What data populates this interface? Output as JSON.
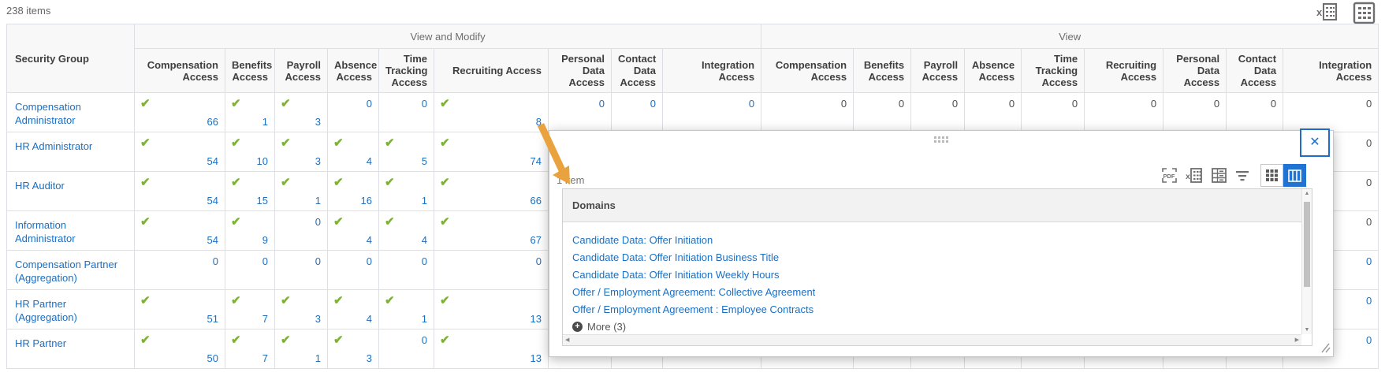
{
  "page": {
    "items_count": "238 items"
  },
  "colors": {
    "link_blue": "#1b6fc2",
    "check_green": "#7db332",
    "plain_value": "#4f4f4f",
    "arrow_orange": "#e9a23e",
    "toggle_active_blue": "#2073d3",
    "close_border_blue": "#1f6dc9"
  },
  "top_icons": [
    "export-to-excel-icon",
    "grid-view-icon"
  ],
  "table": {
    "security_group_header": "Security Group",
    "groups": [
      {
        "label": "View and Modify",
        "columns": [
          "Compensation Access",
          "Benefits Access",
          "Payroll Access",
          "Absence Access",
          "Time Tracking Access",
          "Recruiting Access",
          "Personal Data Access",
          "Contact Data Access",
          "Integration Access"
        ]
      },
      {
        "label": "View",
        "columns": [
          "Compensation Access",
          "Benefits Access",
          "Payroll Access",
          "Absence Access",
          "Time Tracking Access",
          "Recruiting Access",
          "Personal Data Access",
          "Contact Data Access",
          "Integration Access"
        ]
      }
    ],
    "rows": [
      {
        "name": "Compensation Administrator",
        "vm": [
          {
            "check": true,
            "value": "66"
          },
          {
            "check": true,
            "value": "1"
          },
          {
            "check": true,
            "value": "3"
          },
          {
            "value": "0",
            "link": true
          },
          {
            "value": "0",
            "link": true
          },
          {
            "check": true,
            "value": "8"
          },
          {
            "value": "0",
            "link": true
          },
          {
            "value": "0",
            "link": true
          },
          {
            "value": "0",
            "link": true
          }
        ],
        "view": [
          {
            "value": "0"
          },
          {
            "value": "0"
          },
          {
            "value": "0"
          },
          {
            "value": "0"
          },
          {
            "value": "0"
          },
          {
            "value": "0"
          },
          {
            "value": "0"
          },
          {
            "value": "0"
          },
          {
            "value": "0"
          }
        ]
      },
      {
        "name": "HR Administrator",
        "vm": [
          {
            "check": true,
            "value": "54"
          },
          {
            "check": true,
            "value": "10"
          },
          {
            "check": true,
            "value": "3"
          },
          {
            "check": true,
            "value": "4"
          },
          {
            "check": true,
            "value": "5"
          },
          {
            "check": true,
            "value": "74"
          },
          null,
          null,
          null
        ],
        "view": [
          null,
          null,
          null,
          null,
          null,
          null,
          null,
          null,
          {
            "value": "0"
          }
        ]
      },
      {
        "name": "HR Auditor",
        "vm": [
          {
            "check": true,
            "value": "54"
          },
          {
            "check": true,
            "value": "15"
          },
          {
            "check": true,
            "value": "1"
          },
          {
            "check": true,
            "value": "16"
          },
          {
            "check": true,
            "value": "1"
          },
          {
            "check": true,
            "value": "66"
          },
          null,
          null,
          null
        ],
        "view": [
          null,
          null,
          null,
          null,
          null,
          null,
          null,
          null,
          {
            "value": "0"
          }
        ]
      },
      {
        "name": "Information Administrator",
        "vm": [
          {
            "check": true,
            "value": "54"
          },
          {
            "check": true,
            "value": "9"
          },
          {
            "value": "0",
            "link": true
          },
          {
            "check": true,
            "value": "4"
          },
          {
            "check": true,
            "value": "4"
          },
          {
            "check": true,
            "value": "67"
          },
          null,
          null,
          null
        ],
        "view": [
          null,
          null,
          null,
          null,
          null,
          null,
          null,
          null,
          {
            "value": "0"
          }
        ]
      },
      {
        "name": "Compensation Partner (Aggregation)",
        "vm": [
          {
            "value": "0",
            "link": true
          },
          {
            "value": "0",
            "link": true
          },
          {
            "value": "0",
            "link": true
          },
          {
            "value": "0",
            "link": true
          },
          {
            "value": "0",
            "link": true
          },
          {
            "value": "0",
            "link": true
          },
          null,
          null,
          null
        ],
        "view": [
          null,
          null,
          null,
          null,
          null,
          null,
          null,
          null,
          {
            "value": "0",
            "link": true
          }
        ]
      },
      {
        "name": "HR Partner (Aggregation)",
        "vm": [
          {
            "check": true,
            "value": "51"
          },
          {
            "check": true,
            "value": "7"
          },
          {
            "check": true,
            "value": "3"
          },
          {
            "check": true,
            "value": "4"
          },
          {
            "check": true,
            "value": "1"
          },
          {
            "check": true,
            "value": "13"
          },
          null,
          null,
          null
        ],
        "view": [
          null,
          null,
          null,
          null,
          null,
          null,
          null,
          null,
          {
            "value": "0",
            "link": true
          }
        ]
      },
      {
        "name": "HR Partner",
        "vm": [
          {
            "check": true,
            "value": "50"
          },
          {
            "check": true,
            "value": "7"
          },
          {
            "check": true,
            "value": "1"
          },
          {
            "check": true,
            "value": "3"
          },
          {
            "value": "0",
            "link": true
          },
          {
            "check": true,
            "value": "13"
          },
          null,
          null,
          null
        ],
        "view": [
          null,
          null,
          null,
          null,
          null,
          null,
          null,
          null,
          {
            "value": "0",
            "link": true
          }
        ]
      }
    ]
  },
  "popup": {
    "count_label": "1 item",
    "grid_header": "Domains",
    "links": [
      "Candidate Data: Offer Initiation",
      "Candidate Data: Offer Initiation Business Title",
      "Candidate Data: Offer Initiation Weekly Hours",
      "Offer / Employment Agreement: Collective Agreement",
      "Offer / Employment Agreement : Employee Contracts"
    ],
    "more_label": "More (3)",
    "more_icon": "plus-circle-icon",
    "close_label": "✕",
    "toolbar_icons": [
      "pdf-icon",
      "export-to-excel-icon",
      "table-icon",
      "filter-icon",
      "grid-compact-toggle",
      "grid-expanded-toggle"
    ]
  }
}
